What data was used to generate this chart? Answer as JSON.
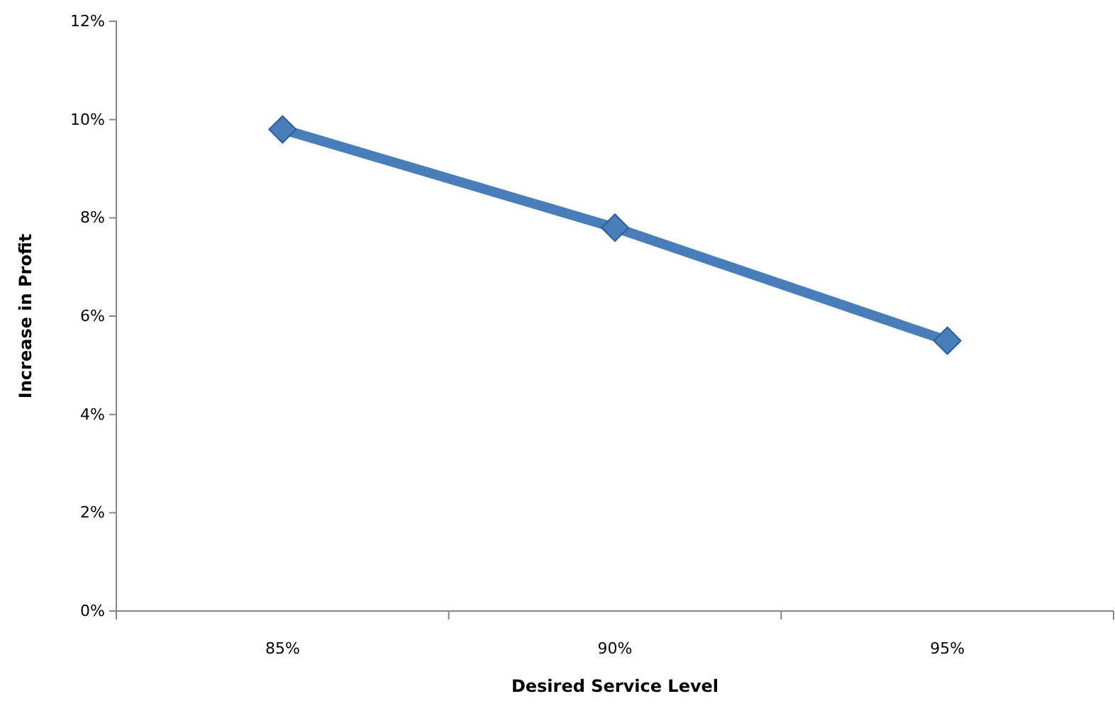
{
  "chart_data": {
    "type": "line",
    "xlabel": "Desired Service Level",
    "ylabel": "Increase in Profit",
    "categories": [
      "85%",
      "90%",
      "95%"
    ],
    "series": [
      {
        "color": "#4a7ebb",
        "values": [
          9.8,
          7.8,
          5.5
        ]
      }
    ],
    "ylim": [
      0,
      12
    ],
    "yticks": [
      {
        "value": 0,
        "label": "0%"
      },
      {
        "value": 2,
        "label": "2%"
      },
      {
        "value": 4,
        "label": "4%"
      },
      {
        "value": 6,
        "label": "6%"
      },
      {
        "value": 8,
        "label": "8%"
      },
      {
        "value": 10,
        "label": "10%"
      },
      {
        "value": 12,
        "label": "12%"
      }
    ],
    "grid": false,
    "marker": "diamond",
    "line_style": "solid"
  }
}
